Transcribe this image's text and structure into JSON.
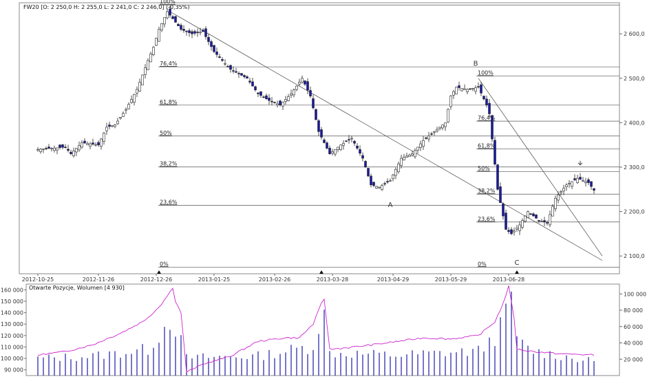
{
  "chart_data": [
    {
      "type": "candlestick",
      "header": "FW20 [O: 2 250,0  H: 2 255,0  L: 2 241,0  C: 2 246,0]  (-0,35%)",
      "quote": {
        "O": 2250.0,
        "H": 2255.0,
        "L": 2241.0,
        "C": 2246.0,
        "change_pct": -0.35
      },
      "ylim": [
        2060,
        2670
      ],
      "y_ticks": [
        "2 600,0",
        "2 500,0",
        "2 400,0",
        "2 300,0",
        "2 200,0",
        "2 100,0"
      ],
      "y_tick_values": [
        2600,
        2500,
        2400,
        2300,
        2200,
        2100
      ],
      "x_ticks": [
        "2012-10-25",
        "2012-11-26",
        "2012-12-26",
        "2013-01-25",
        "2013-02-26",
        "2013-03-28",
        "2013-04-29",
        "2013-05-29",
        "2013-06-28"
      ],
      "x_tick_index": [
        0,
        22,
        43,
        64,
        86,
        107,
        129,
        150,
        171
      ],
      "n_bars": 205,
      "price_path": [
        [
          0,
          2340
        ],
        [
          10,
          2345
        ],
        [
          12,
          2330
        ],
        [
          16,
          2355
        ],
        [
          22,
          2350
        ],
        [
          25,
          2390
        ],
        [
          28,
          2395
        ],
        [
          32,
          2430
        ],
        [
          36,
          2475
        ],
        [
          40,
          2540
        ],
        [
          42,
          2570
        ],
        [
          44,
          2610
        ],
        [
          47,
          2650
        ],
        [
          52,
          2610
        ],
        [
          56,
          2600
        ],
        [
          60,
          2605
        ],
        [
          64,
          2560
        ],
        [
          70,
          2520
        ],
        [
          76,
          2500
        ],
        [
          80,
          2465
        ],
        [
          84,
          2450
        ],
        [
          88,
          2440
        ],
        [
          92,
          2465
        ],
        [
          96,
          2500
        ],
        [
          99,
          2460
        ],
        [
          102,
          2380
        ],
        [
          106,
          2330
        ],
        [
          110,
          2350
        ],
        [
          114,
          2365
        ],
        [
          118,
          2320
        ],
        [
          121,
          2260
        ],
        [
          124,
          2255
        ],
        [
          128,
          2270
        ],
        [
          132,
          2320
        ],
        [
          136,
          2330
        ],
        [
          140,
          2360
        ],
        [
          144,
          2380
        ],
        [
          148,
          2400
        ],
        [
          150,
          2460
        ],
        [
          152,
          2480
        ],
        [
          156,
          2475
        ],
        [
          160,
          2480
        ],
        [
          163,
          2440
        ],
        [
          164,
          2420
        ],
        [
          167,
          2250
        ],
        [
          170,
          2160
        ],
        [
          172,
          2150
        ],
        [
          175,
          2170
        ],
        [
          178,
          2200
        ],
        [
          182,
          2180
        ],
        [
          185,
          2175
        ],
        [
          188,
          2230
        ],
        [
          192,
          2260
        ],
        [
          196,
          2275
        ],
        [
          200,
          2265
        ],
        [
          202,
          2248
        ]
      ],
      "fibonacci_1": {
        "levels": [
          "100%",
          "76,4%",
          "61,8%",
          "50%",
          "38,2%",
          "23,6%",
          "0%"
        ],
        "high": 2665,
        "low": 2075
      },
      "fibonacci_2": {
        "levels": [
          "100%",
          "76,4%",
          "61,8%",
          "50%",
          "38,2%",
          "23,6%",
          "0%"
        ],
        "high": 2505,
        "low": 2075
      },
      "wave_labels": [
        "A",
        "B",
        "C"
      ],
      "wave_points": [
        {
          "label": "A",
          "x_index": 128,
          "y": 2210
        },
        {
          "label": "B",
          "x_index": 159,
          "y": 2528
        },
        {
          "label": "C",
          "x_index": 174,
          "y": 2080
        }
      ],
      "trendlines": [
        {
          "from": [
            48,
            2650
          ],
          "to": [
            205,
            2090
          ]
        },
        {
          "from": [
            160,
            2500
          ],
          "to": [
            205,
            2100
          ]
        }
      ],
      "markers_x_index": [
        44,
        103,
        174
      ],
      "arrow": {
        "x_index": 197,
        "y": 2305
      }
    },
    {
      "type": "bar_line",
      "title": "Otwarte Pozycje, Wolumen [4 930]",
      "series": [
        {
          "name": "Otwarte Pozycje",
          "axis": "left"
        },
        {
          "name": "Wolumen",
          "axis": "right"
        }
      ],
      "left_ylim": [
        85000,
        165000
      ],
      "left_ticks": [
        "160 000",
        "150 000",
        "140 000",
        "130 000",
        "120 000",
        "110 000",
        "100 000",
        "90 000"
      ],
      "left_tick_values": [
        160000,
        150000,
        140000,
        130000,
        120000,
        110000,
        100000,
        90000
      ],
      "right_ylim": [
        0,
        112000
      ],
      "right_ticks": [
        "100 000",
        "80 000",
        "60 000",
        "40 000",
        "20 000"
      ],
      "right_tick_values": [
        100000,
        80000,
        60000,
        40000,
        20000
      ],
      "oi_path": [
        [
          0,
          103000
        ],
        [
          10,
          106000
        ],
        [
          20,
          112000
        ],
        [
          30,
          122000
        ],
        [
          38,
          132000
        ],
        [
          42,
          140000
        ],
        [
          45,
          148000
        ],
        [
          48,
          158000
        ],
        [
          49,
          162000
        ],
        [
          50,
          150000
        ],
        [
          52,
          140000
        ],
        [
          54,
          88000
        ],
        [
          60,
          95000
        ],
        [
          70,
          102000
        ],
        [
          80,
          115000
        ],
        [
          90,
          118000
        ],
        [
          95,
          118000
        ],
        [
          100,
          130000
        ],
        [
          103,
          148000
        ],
        [
          104,
          152000
        ],
        [
          106,
          108000
        ],
        [
          115,
          110000
        ],
        [
          125,
          113000
        ],
        [
          140,
          118000
        ],
        [
          150,
          117000
        ],
        [
          160,
          120000
        ],
        [
          166,
          132000
        ],
        [
          169,
          148000
        ],
        [
          171,
          163000
        ],
        [
          173,
          135000
        ],
        [
          174,
          108000
        ],
        [
          180,
          106000
        ],
        [
          190,
          104000
        ],
        [
          202,
          103000
        ]
      ],
      "volume_path": [
        [
          0,
          21000
        ],
        [
          20,
          24000
        ],
        [
          40,
          32000
        ],
        [
          46,
          60000
        ],
        [
          48,
          70000
        ],
        [
          50,
          60000
        ],
        [
          54,
          22000
        ],
        [
          80,
          24000
        ],
        [
          100,
          36000
        ],
        [
          102,
          64000
        ],
        [
          104,
          72000
        ],
        [
          106,
          28000
        ],
        [
          130,
          25000
        ],
        [
          160,
          30000
        ],
        [
          166,
          48000
        ],
        [
          170,
          72000
        ],
        [
          172,
          106000
        ],
        [
          174,
          42000
        ],
        [
          180,
          30000
        ],
        [
          202,
          17000
        ]
      ]
    }
  ]
}
